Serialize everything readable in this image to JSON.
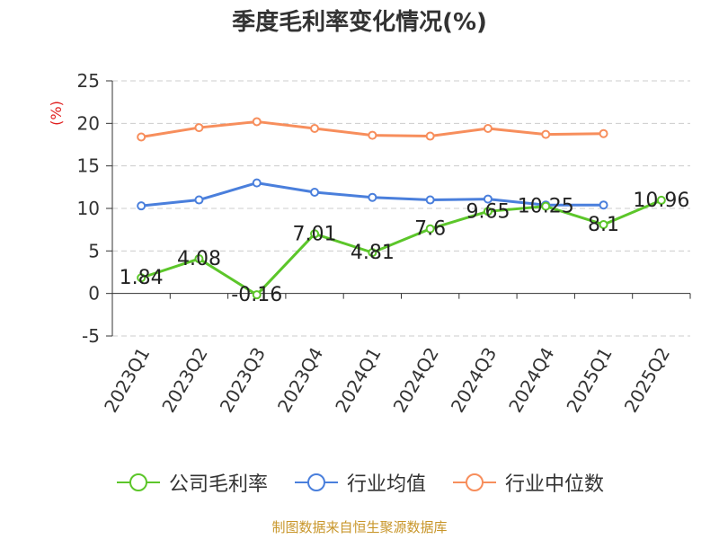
{
  "title": "季度毛利率变化情况(%)",
  "source": "制图数据来自恒生聚源数据库",
  "chart_data": {
    "type": "line",
    "title": "季度毛利率变化情况(%)",
    "ylabel": "(%)",
    "xlabel": "",
    "ylim": [
      -5,
      25
    ],
    "yticks": [
      "25",
      "20",
      "15",
      "10",
      "5",
      "0",
      "-5"
    ],
    "grid": true,
    "legend_position": "bottom",
    "categories": [
      "2023Q1",
      "2023Q2",
      "2023Q3",
      "2023Q4",
      "2024Q1",
      "2024Q2",
      "2024Q3",
      "2024Q4",
      "2025Q1",
      "2025Q2"
    ],
    "series": [
      {
        "name": "公司毛利率",
        "color": "#5cc62a",
        "values": [
          1.84,
          4.08,
          -0.16,
          7.01,
          4.81,
          7.6,
          9.65,
          10.25,
          8.1,
          10.96
        ],
        "labels": [
          "1.84",
          "4.08",
          "-0.16",
          "7.01",
          "4.81",
          "7.6",
          "9.65",
          "10.25",
          "8.1",
          "10.96"
        ]
      },
      {
        "name": "行业均值",
        "color": "#4a7fdc",
        "values": [
          10.3,
          11.0,
          13.0,
          11.9,
          11.3,
          11.0,
          11.1,
          10.4,
          10.4,
          null
        ]
      },
      {
        "name": "行业中位数",
        "color": "#f78e5c",
        "values": [
          18.4,
          19.5,
          20.2,
          19.4,
          18.6,
          18.5,
          19.4,
          18.7,
          18.8,
          null
        ]
      }
    ]
  }
}
